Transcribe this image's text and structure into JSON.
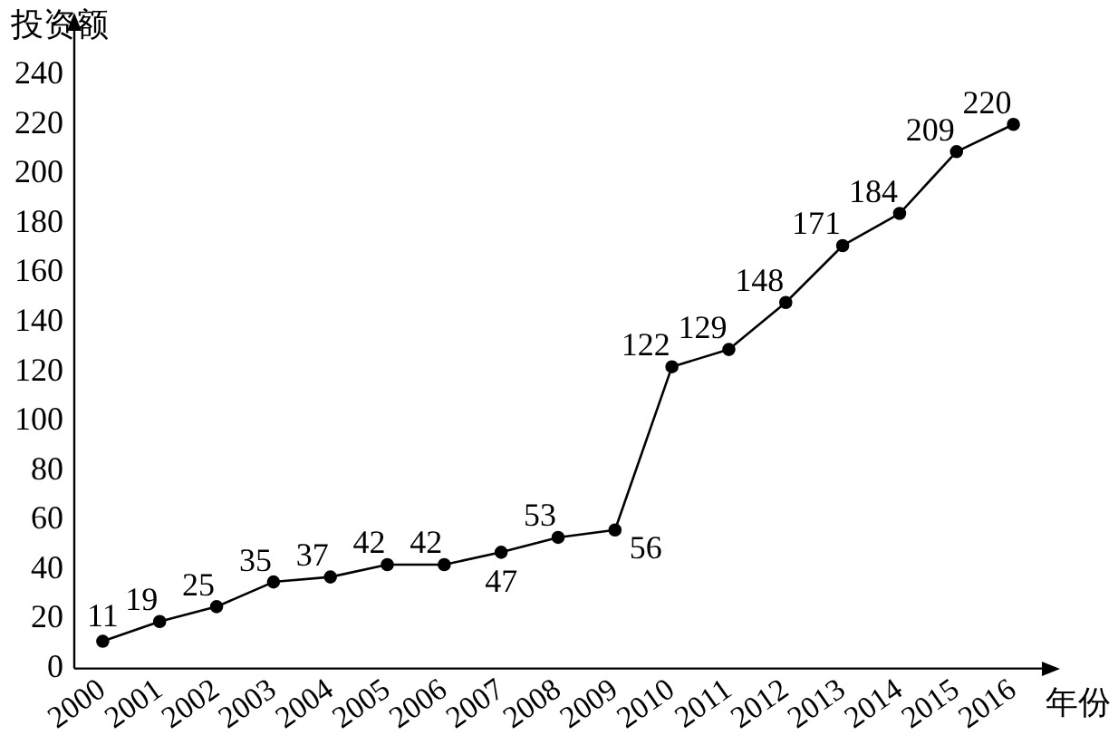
{
  "chart_data": {
    "type": "line",
    "xlabel": "年份",
    "ylabel": "投资额",
    "categories": [
      "2000",
      "2001",
      "2002",
      "2003",
      "2004",
      "2005",
      "2006",
      "2007",
      "2008",
      "2009",
      "2010",
      "2011",
      "2012",
      "2013",
      "2014",
      "2015",
      "2016"
    ],
    "values": [
      11,
      19,
      25,
      35,
      37,
      42,
      42,
      47,
      53,
      56,
      122,
      129,
      148,
      171,
      184,
      209,
      220
    ],
    "color": "#000000",
    "ylim": [
      0,
      258
    ],
    "yticks": [
      0,
      20,
      40,
      60,
      80,
      100,
      120,
      140,
      160,
      180,
      200,
      220,
      240
    ],
    "grid": false,
    "legend": false,
    "marker": "circle",
    "line_style": "solid",
    "data_labels": true
  }
}
